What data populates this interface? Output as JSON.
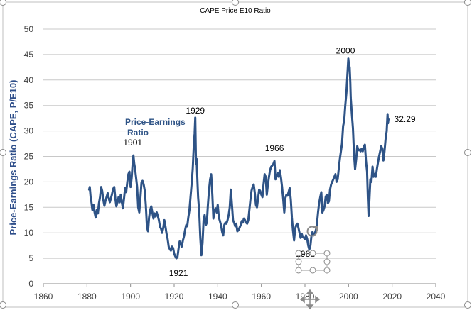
{
  "chart_data": {
    "type": "line",
    "title": "CAPE Price E10 Ratio",
    "xlabel": "",
    "ylabel": "Price-Earnings Ratio (CAPE, P/E10)",
    "xlim": [
      1860,
      2040
    ],
    "ylim": [
      0,
      50
    ],
    "xticks": [
      1860,
      1880,
      1900,
      1920,
      1940,
      1960,
      1980,
      2000,
      2020,
      2040
    ],
    "yticks": [
      0,
      5,
      10,
      15,
      20,
      25,
      30,
      35,
      40,
      45,
      50
    ],
    "grid": true,
    "legend": "none",
    "series_label": {
      "line1": "Price-Earnings",
      "line2": "Ratio"
    },
    "annotations": [
      {
        "text": "1901",
        "x": 1901,
        "y": 25.2
      },
      {
        "text": "1929",
        "x": 1929.7,
        "y": 32.6
      },
      {
        "text": "1921",
        "x": 1921,
        "y": 4.9
      },
      {
        "text": "1966",
        "x": 1966,
        "y": 24.1
      },
      {
        "text": "1981",
        "x": 1981.5,
        "y": 6.8
      },
      {
        "text": "2000",
        "x": 1999.9,
        "y": 44.2
      },
      {
        "text": "32.29",
        "x": 2018,
        "y": 32.29
      }
    ],
    "series": [
      {
        "color": "#2e5386",
        "points": [
          [
            1881,
            18.5
          ],
          [
            1881.3,
            19.0
          ],
          [
            1881.7,
            17.0
          ],
          [
            1882,
            16.2
          ],
          [
            1882.5,
            14.5
          ],
          [
            1883,
            15.5
          ],
          [
            1883.5,
            14.0
          ],
          [
            1884,
            13.0
          ],
          [
            1884.5,
            14.5
          ],
          [
            1885,
            13.8
          ],
          [
            1885.5,
            15.8
          ],
          [
            1886,
            17.0
          ],
          [
            1886.5,
            19.0
          ],
          [
            1887,
            18.2
          ],
          [
            1887.5,
            16.5
          ],
          [
            1888,
            15.3
          ],
          [
            1888.5,
            16.3
          ],
          [
            1889,
            17.0
          ],
          [
            1889.5,
            17.8
          ],
          [
            1890,
            16.8
          ],
          [
            1890.5,
            16.0
          ],
          [
            1891,
            16.8
          ],
          [
            1891.5,
            17.6
          ],
          [
            1892,
            18.6
          ],
          [
            1892.5,
            19.0
          ],
          [
            1893,
            16.8
          ],
          [
            1893.5,
            15.2
          ],
          [
            1894,
            16.0
          ],
          [
            1894.5,
            17.0
          ],
          [
            1895,
            16.0
          ],
          [
            1895.5,
            17.5
          ],
          [
            1896,
            16.0
          ],
          [
            1896.5,
            14.8
          ],
          [
            1897,
            16.8
          ],
          [
            1897.5,
            18.8
          ],
          [
            1898,
            18.0
          ],
          [
            1898.5,
            20.0
          ],
          [
            1899,
            21.5
          ],
          [
            1899.5,
            22.0
          ],
          [
            1900,
            19.0
          ],
          [
            1900.5,
            20.8
          ],
          [
            1901,
            23.8
          ],
          [
            1901.3,
            25.2
          ],
          [
            1901.7,
            23.5
          ],
          [
            1902,
            22.8
          ],
          [
            1902.5,
            21.0
          ],
          [
            1903,
            19.0
          ],
          [
            1903.5,
            15.0
          ],
          [
            1904,
            14.0
          ],
          [
            1904.5,
            16.8
          ],
          [
            1905,
            19.8
          ],
          [
            1905.5,
            20.2
          ],
          [
            1906,
            19.5
          ],
          [
            1906.5,
            18.3
          ],
          [
            1907,
            15.5
          ],
          [
            1907.5,
            11.2
          ],
          [
            1908,
            10.3
          ],
          [
            1908.5,
            13.0
          ],
          [
            1909,
            14.5
          ],
          [
            1909.5,
            15.2
          ],
          [
            1910,
            14.0
          ],
          [
            1910.5,
            12.8
          ],
          [
            1911,
            13.8
          ],
          [
            1911.5,
            13.2
          ],
          [
            1912,
            14.0
          ],
          [
            1912.5,
            13.3
          ],
          [
            1913,
            12.5
          ],
          [
            1913.5,
            11.2
          ],
          [
            1914,
            10.8
          ],
          [
            1914.5,
            10.0
          ],
          [
            1915,
            11.0
          ],
          [
            1915.5,
            12.5
          ],
          [
            1916,
            11.3
          ],
          [
            1916.5,
            9.8
          ],
          [
            1917,
            8.8
          ],
          [
            1917.5,
            7.3
          ],
          [
            1918,
            6.8
          ],
          [
            1918.5,
            6.5
          ],
          [
            1919,
            7.3
          ],
          [
            1919.5,
            7.0
          ],
          [
            1920,
            5.9
          ],
          [
            1920.5,
            5.4
          ],
          [
            1921,
            5.0
          ],
          [
            1921.5,
            5.2
          ],
          [
            1922,
            6.8
          ],
          [
            1922.5,
            8.3
          ],
          [
            1923,
            8.0
          ],
          [
            1923.5,
            7.3
          ],
          [
            1924,
            8.5
          ],
          [
            1924.5,
            9.3
          ],
          [
            1925,
            10.5
          ],
          [
            1925.5,
            11.5
          ],
          [
            1926,
            11.3
          ],
          [
            1926.5,
            13.0
          ],
          [
            1927,
            14.5
          ],
          [
            1927.5,
            17.0
          ],
          [
            1928,
            19.5
          ],
          [
            1928.5,
            22.5
          ],
          [
            1929,
            27.0
          ],
          [
            1929.4,
            29.5
          ],
          [
            1929.7,
            32.6
          ],
          [
            1930,
            23.5
          ],
          [
            1930.3,
            24.5
          ],
          [
            1930.7,
            20.0
          ],
          [
            1931,
            17.0
          ],
          [
            1931.5,
            14.0
          ],
          [
            1932,
            9.0
          ],
          [
            1932.5,
            5.6
          ],
          [
            1933,
            8.0
          ],
          [
            1933.5,
            12.5
          ],
          [
            1934,
            13.5
          ],
          [
            1934.5,
            11.5
          ],
          [
            1935,
            12.0
          ],
          [
            1935.5,
            15.5
          ],
          [
            1936,
            18.5
          ],
          [
            1936.5,
            20.5
          ],
          [
            1937,
            21.5
          ],
          [
            1937.5,
            17.5
          ],
          [
            1938,
            12.8
          ],
          [
            1938.5,
            14.5
          ],
          [
            1939,
            14.8
          ],
          [
            1939.5,
            14.0
          ],
          [
            1940,
            15.5
          ],
          [
            1940.5,
            13.0
          ],
          [
            1941,
            12.3
          ],
          [
            1941.5,
            11.5
          ],
          [
            1942,
            10.2
          ],
          [
            1942.5,
            9.5
          ],
          [
            1943,
            11.5
          ],
          [
            1943.5,
            12.0
          ],
          [
            1944,
            11.8
          ],
          [
            1944.5,
            12.5
          ],
          [
            1945,
            13.5
          ],
          [
            1945.5,
            15.0
          ],
          [
            1946,
            18.5
          ],
          [
            1946.5,
            15.5
          ],
          [
            1947,
            12.5
          ],
          [
            1947.5,
            12.0
          ],
          [
            1948,
            11.3
          ],
          [
            1948.5,
            11.8
          ],
          [
            1949,
            10.3
          ],
          [
            1949.5,
            10.5
          ],
          [
            1950,
            11.0
          ],
          [
            1950.5,
            11.5
          ],
          [
            1951,
            12.3
          ],
          [
            1951.5,
            12.0
          ],
          [
            1952,
            12.8
          ],
          [
            1952.5,
            12.5
          ],
          [
            1953,
            12.0
          ],
          [
            1953.5,
            11.8
          ],
          [
            1954,
            12.5
          ],
          [
            1954.5,
            14.5
          ],
          [
            1955,
            16.5
          ],
          [
            1955.5,
            18.3
          ],
          [
            1956,
            19.0
          ],
          [
            1956.5,
            19.5
          ],
          [
            1957,
            17.8
          ],
          [
            1957.5,
            15.5
          ],
          [
            1958,
            15.0
          ],
          [
            1958.5,
            16.8
          ],
          [
            1959,
            18.5
          ],
          [
            1959.5,
            18.2
          ],
          [
            1960,
            17.5
          ],
          [
            1960.5,
            17.0
          ],
          [
            1961,
            19.5
          ],
          [
            1961.5,
            21.5
          ],
          [
            1962,
            21.0
          ],
          [
            1962.5,
            17.5
          ],
          [
            1963,
            19.5
          ],
          [
            1963.5,
            21.0
          ],
          [
            1964,
            22.3
          ],
          [
            1964.5,
            23.0
          ],
          [
            1965,
            23.2
          ],
          [
            1965.5,
            23.5
          ],
          [
            1966,
            24.1
          ],
          [
            1966.5,
            20.5
          ],
          [
            1967,
            21.0
          ],
          [
            1967.5,
            21.8
          ],
          [
            1968,
            21.0
          ],
          [
            1968.5,
            22.3
          ],
          [
            1969,
            20.8
          ],
          [
            1969.5,
            19.0
          ],
          [
            1970,
            16.8
          ],
          [
            1970.5,
            14.0
          ],
          [
            1971,
            16.8
          ],
          [
            1971.5,
            17.5
          ],
          [
            1972,
            17.3
          ],
          [
            1972.5,
            18.0
          ],
          [
            1973,
            18.8
          ],
          [
            1973.5,
            16.5
          ],
          [
            1974,
            13.0
          ],
          [
            1974.5,
            10.5
          ],
          [
            1975,
            8.5
          ],
          [
            1975.5,
            10.8
          ],
          [
            1976,
            11.5
          ],
          [
            1976.5,
            11.8
          ],
          [
            1977,
            11.0
          ],
          [
            1977.5,
            10.0
          ],
          [
            1978,
            9.0
          ],
          [
            1978.5,
            9.8
          ],
          [
            1979,
            9.2
          ],
          [
            1979.5,
            9.0
          ],
          [
            1980,
            8.8
          ],
          [
            1980.5,
            9.5
          ],
          [
            1981,
            8.8
          ],
          [
            1981.5,
            7.5
          ],
          [
            1982,
            6.7
          ],
          [
            1982.5,
            7.5
          ],
          [
            1983,
            9.5
          ],
          [
            1983.5,
            10.2
          ],
          [
            1984,
            9.5
          ],
          [
            1984.5,
            9.8
          ],
          [
            1985,
            10.5
          ],
          [
            1985.5,
            11.8
          ],
          [
            1986,
            14.0
          ],
          [
            1986.5,
            15.8
          ],
          [
            1987,
            17.0
          ],
          [
            1987.5,
            18.0
          ],
          [
            1988,
            14.0
          ],
          [
            1988.5,
            14.5
          ],
          [
            1989,
            15.2
          ],
          [
            1989.5,
            17.0
          ],
          [
            1990,
            17.5
          ],
          [
            1990.5,
            15.8
          ],
          [
            1991,
            16.2
          ],
          [
            1991.5,
            18.5
          ],
          [
            1992,
            19.5
          ],
          [
            1992.5,
            20.0
          ],
          [
            1993,
            20.5
          ],
          [
            1993.5,
            21.0
          ],
          [
            1994,
            21.5
          ],
          [
            1994.5,
            20.0
          ],
          [
            1995,
            20.5
          ],
          [
            1995.5,
            22.5
          ],
          [
            1996,
            24.5
          ],
          [
            1996.5,
            26.0
          ],
          [
            1997,
            27.5
          ],
          [
            1997.5,
            31.0
          ],
          [
            1998,
            32.0
          ],
          [
            1998.5,
            35.0
          ],
          [
            1999,
            37.5
          ],
          [
            1999.4,
            40.5
          ],
          [
            1999.9,
            44.2
          ],
          [
            2000.2,
            43.0
          ],
          [
            2000.5,
            42.5
          ],
          [
            2000.8,
            39.5
          ],
          [
            2001,
            36.5
          ],
          [
            2001.5,
            33.5
          ],
          [
            2002,
            30.5
          ],
          [
            2002.5,
            25.5
          ],
          [
            2003,
            22.5
          ],
          [
            2003.5,
            24.5
          ],
          [
            2004,
            27.0
          ],
          [
            2004.5,
            26.2
          ],
          [
            2005,
            26.3
          ],
          [
            2005.5,
            26.0
          ],
          [
            2006,
            26.5
          ],
          [
            2006.5,
            26.0
          ],
          [
            2007,
            27.0
          ],
          [
            2007.5,
            27.3
          ],
          [
            2008,
            24.0
          ],
          [
            2008.5,
            22.0
          ],
          [
            2008.9,
            16.5
          ],
          [
            2009.2,
            13.3
          ],
          [
            2009.5,
            16.0
          ],
          [
            2010,
            20.5
          ],
          [
            2010.5,
            20.0
          ],
          [
            2011,
            23.0
          ],
          [
            2011.5,
            21.0
          ],
          [
            2012,
            21.5
          ],
          [
            2012.5,
            21.0
          ],
          [
            2013,
            22.5
          ],
          [
            2013.5,
            23.8
          ],
          [
            2014,
            25.0
          ],
          [
            2014.5,
            26.0
          ],
          [
            2015,
            27.0
          ],
          [
            2015.5,
            26.5
          ],
          [
            2016,
            24.2
          ],
          [
            2016.5,
            26.0
          ],
          [
            2017,
            28.5
          ],
          [
            2017.5,
            30.0
          ],
          [
            2017.9,
            33.3
          ],
          [
            2018.1,
            31.5
          ],
          [
            2018.3,
            32.29
          ]
        ]
      }
    ]
  },
  "ui": {
    "selected_label": "1981"
  }
}
